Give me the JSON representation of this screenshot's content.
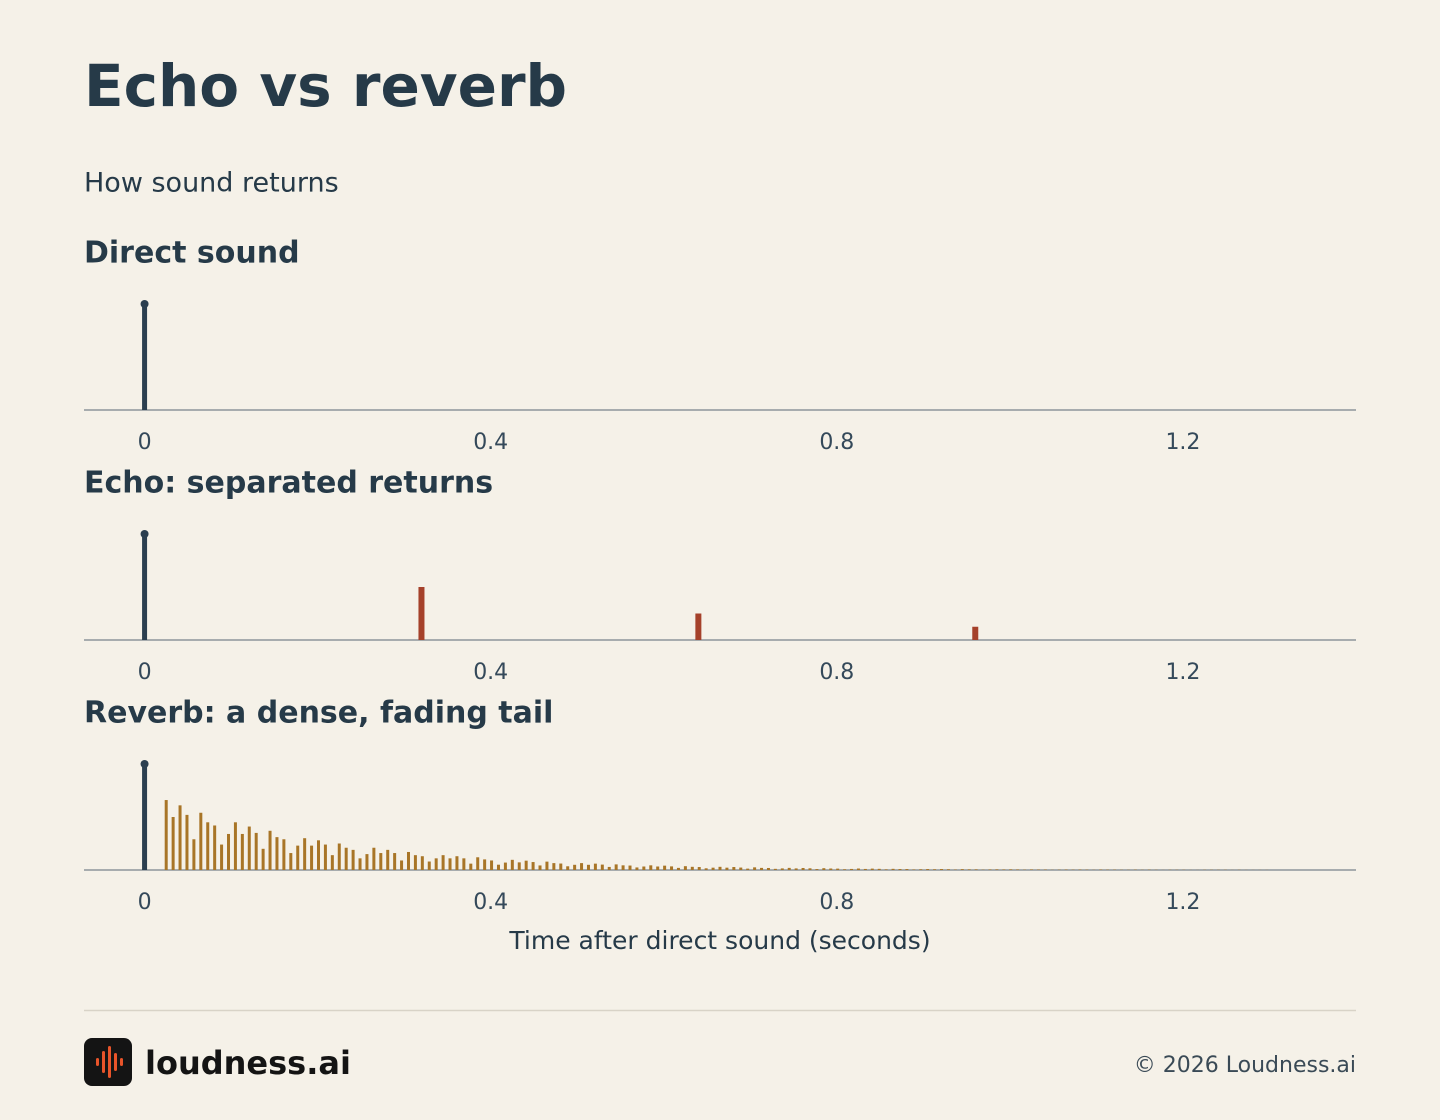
{
  "title": "Echo vs reverb",
  "subtitle": "How sound returns",
  "chart_data": [
    {
      "type": "stem",
      "title": "Direct sound",
      "series": [
        {
          "color": "#2b3f50",
          "marker": "circle",
          "x": [
            0
          ],
          "values": [
            1
          ]
        }
      ],
      "xlim": [
        -0.07,
        1.4
      ],
      "xticks": [
        0,
        0.4,
        0.8,
        1.2
      ],
      "ylim": [
        0,
        1
      ]
    },
    {
      "type": "stem",
      "title": "Echo: separated returns",
      "series": [
        {
          "color": "#2b3f50",
          "marker": "circle",
          "x": [
            0
          ],
          "values": [
            1
          ]
        },
        {
          "color": "#a5412a",
          "x": [
            0.32,
            0.64,
            0.96
          ],
          "values": [
            0.5,
            0.25,
            0.125
          ]
        }
      ],
      "xlim": [
        -0.07,
        1.4
      ],
      "xticks": [
        0,
        0.4,
        0.8,
        1.2
      ],
      "ylim": [
        0,
        1
      ]
    },
    {
      "type": "stem",
      "title": "Reverb: a dense, fading tail",
      "xlabel": "Time after direct sound (seconds)",
      "series": [
        {
          "color": "#2b3f50",
          "marker": "circle",
          "x": [
            0
          ],
          "values": [
            1
          ]
        },
        {
          "color": "#a87527",
          "x": [
            0.025,
            0.033,
            0.041,
            0.049,
            0.057,
            0.065,
            0.073,
            0.081,
            0.089,
            0.097,
            0.105,
            0.113,
            0.121,
            0.129,
            0.137,
            0.145,
            0.153,
            0.161,
            0.169,
            0.177,
            0.185,
            0.193,
            0.201,
            0.209,
            0.217,
            0.225,
            0.233,
            0.241,
            0.249,
            0.257,
            0.265,
            0.273,
            0.281,
            0.289,
            0.297,
            0.305,
            0.313,
            0.321,
            0.329,
            0.337,
            0.345,
            0.353,
            0.361,
            0.369,
            0.377,
            0.385,
            0.393,
            0.401,
            0.409,
            0.417,
            0.425,
            0.433,
            0.441,
            0.449,
            0.457,
            0.465,
            0.473,
            0.481,
            0.489,
            0.497,
            0.505,
            0.513,
            0.521,
            0.529,
            0.537,
            0.545,
            0.553,
            0.561,
            0.569,
            0.577,
            0.585,
            0.593,
            0.601,
            0.609,
            0.617,
            0.625,
            0.633,
            0.641,
            0.649,
            0.657,
            0.665,
            0.673,
            0.681,
            0.689,
            0.697,
            0.705,
            0.713,
            0.721,
            0.729,
            0.737,
            0.745,
            0.753,
            0.761,
            0.769,
            0.777,
            0.785,
            0.793,
            0.801,
            0.809,
            0.817,
            0.825,
            0.833,
            0.841,
            0.849,
            0.857,
            0.865,
            0.873,
            0.881,
            0.889,
            0.897,
            0.905,
            0.913,
            0.921,
            0.929,
            0.937,
            0.945,
            0.953,
            0.961,
            0.969,
            0.977,
            0.985,
            0.993,
            1.001,
            1.009,
            1.017,
            1.025,
            1.033,
            1.041,
            1.049,
            1.057,
            1.065,
            1.073,
            1.081,
            1.089,
            1.097,
            1.105,
            1.113,
            1.121,
            1.129,
            1.137,
            1.145,
            1.153,
            1.161,
            1.169,
            1.177,
            1.185,
            1.193,
            1.201,
            1.209,
            1.217,
            1.225,
            1.233,
            1.241,
            1.249,
            1.257,
            1.265,
            1.273,
            1.281,
            1.289,
            1.297
          ],
          "values": [
            0.66,
            0.5,
            0.61,
            0.52,
            0.29,
            0.54,
            0.45,
            0.42,
            0.24,
            0.34,
            0.45,
            0.34,
            0.41,
            0.35,
            0.2,
            0.37,
            0.31,
            0.29,
            0.16,
            0.23,
            0.3,
            0.23,
            0.28,
            0.24,
            0.14,
            0.25,
            0.21,
            0.19,
            0.11,
            0.15,
            0.21,
            0.16,
            0.19,
            0.16,
            0.09,
            0.17,
            0.14,
            0.13,
            0.08,
            0.11,
            0.14,
            0.11,
            0.13,
            0.11,
            0.06,
            0.12,
            0.1,
            0.09,
            0.05,
            0.07,
            0.096,
            0.072,
            0.088,
            0.075,
            0.043,
            0.079,
            0.065,
            0.061,
            0.035,
            0.049,
            0.065,
            0.049,
            0.06,
            0.051,
            0.029,
            0.053,
            0.044,
            0.042,
            0.024,
            0.033,
            0.044,
            0.033,
            0.041,
            0.034,
            0.02,
            0.036,
            0.03,
            0.028,
            0.016,
            0.022,
            0.03,
            0.022,
            0.028,
            0.023,
            0.013,
            0.025,
            0.02,
            0.019,
            0.011,
            0.015,
            0.02,
            0.015,
            0.019,
            0.016,
            0.009,
            0.017,
            0.014,
            0.013,
            0.007,
            0.01,
            0.014,
            0.01,
            0.013,
            0.011,
            0.006,
            0.011,
            0.009,
            0.009,
            0.005,
            0.007,
            0.009,
            0.007,
            0.009,
            0.007,
            0.004,
            0.008,
            0.006,
            0.006,
            0.003,
            0.005,
            0.006,
            0.005,
            0.006,
            0.005,
            0.003,
            0.005,
            0.004,
            0.004,
            0.002,
            0.003,
            0.004,
            0.003,
            0.004,
            0.003,
            0.002,
            0.004,
            0.003,
            0.003,
            0.002,
            0.002,
            0.003,
            0.002,
            0.003,
            0.002,
            0.001,
            0.002,
            0.002,
            0.002,
            0.001,
            0.001,
            0.002,
            0.002,
            0.002,
            0.002,
            0.001,
            0.002,
            0.001,
            0.001,
            0.001,
            0.001
          ]
        }
      ],
      "xlim": [
        -0.07,
        1.4
      ],
      "xticks": [
        0,
        0.4,
        0.8,
        1.2
      ],
      "ylim": [
        0,
        1
      ]
    }
  ],
  "footer": {
    "brand": "loudness.ai",
    "copyright": "© 2026 Loudness.ai"
  }
}
